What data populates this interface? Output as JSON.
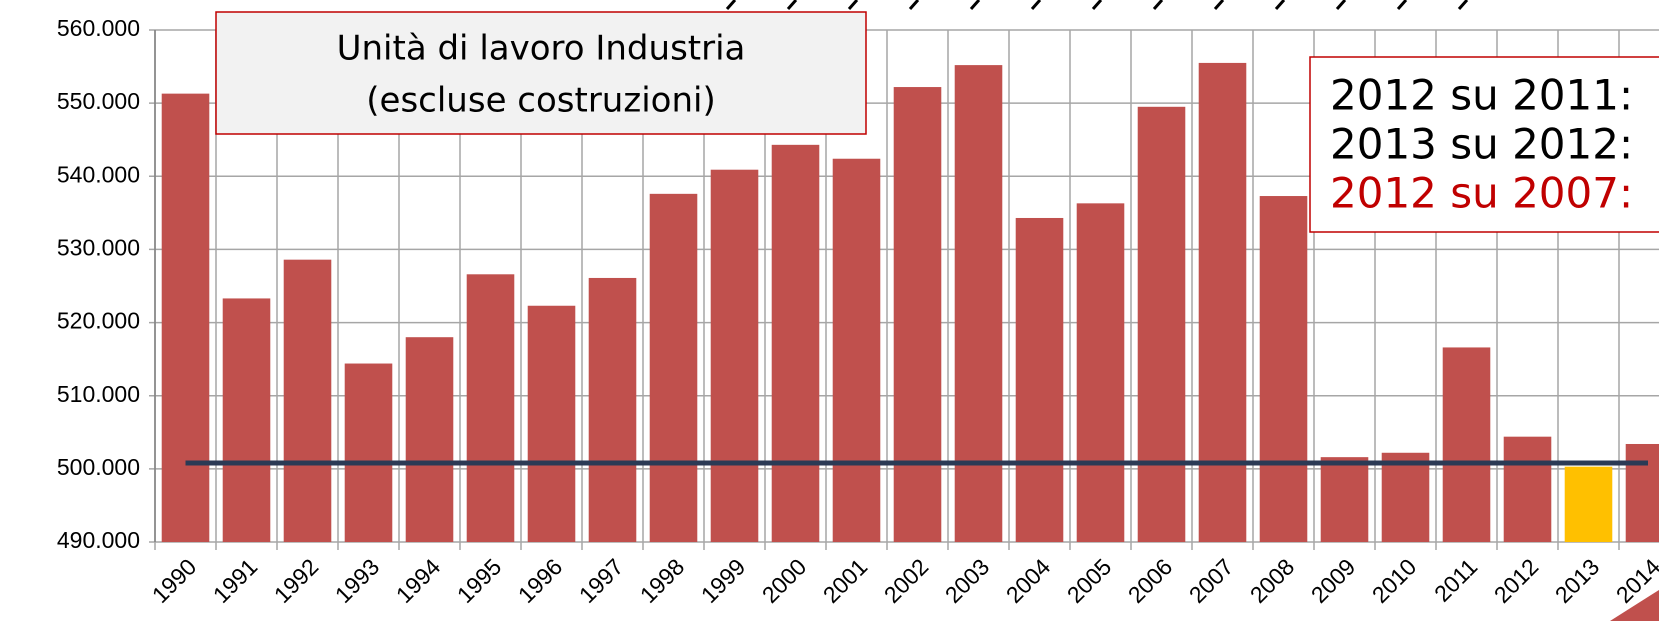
{
  "chart_data": {
    "type": "bar",
    "title": [
      "Unità di lavoro Industria",
      "(escluse costruzioni)"
    ],
    "annotations": [
      "2012 su 2011:",
      "2013 su 2012:",
      "2012 su 2007:"
    ],
    "categories": [
      "1990",
      "1991",
      "1992",
      "1993",
      "1994",
      "1995",
      "1996",
      "1997",
      "1998",
      "1999",
      "2000",
      "2001",
      "2002",
      "2003",
      "2004",
      "2005",
      "2006",
      "2007",
      "2008",
      "2009",
      "2010",
      "2011",
      "2012",
      "2013",
      "2014"
    ],
    "values": [
      551300,
      523300,
      528600,
      514400,
      518000,
      526600,
      522300,
      526100,
      537600,
      540900,
      544300,
      542400,
      552200,
      555200,
      534300,
      536300,
      549500,
      555500,
      537300,
      501600,
      502200,
      516600,
      504400,
      500300,
      503400
    ],
    "colors": [
      "#c0504d",
      "#c0504d",
      "#c0504d",
      "#c0504d",
      "#c0504d",
      "#c0504d",
      "#c0504d",
      "#c0504d",
      "#c0504d",
      "#c0504d",
      "#c0504d",
      "#c0504d",
      "#c0504d",
      "#c0504d",
      "#c0504d",
      "#c0504d",
      "#c0504d",
      "#c0504d",
      "#c0504d",
      "#c0504d",
      "#c0504d",
      "#c0504d",
      "#c0504d",
      "#ffc000",
      "#c0504d"
    ],
    "reference_line": {
      "value": 500800,
      "color": "#2b3a55"
    },
    "ylim": [
      490000,
      560000
    ],
    "yticks": [
      {
        "value": 490000,
        "label": "490.000"
      },
      {
        "value": 500000,
        "label": "500.000"
      },
      {
        "value": 510000,
        "label": "510.000"
      },
      {
        "value": 520000,
        "label": "520.000"
      },
      {
        "value": 530000,
        "label": "530.000"
      },
      {
        "value": 540000,
        "label": "540.000"
      },
      {
        "value": 550000,
        "label": "550.000"
      },
      {
        "value": 560000,
        "label": "560.000"
      }
    ],
    "grid": true
  }
}
